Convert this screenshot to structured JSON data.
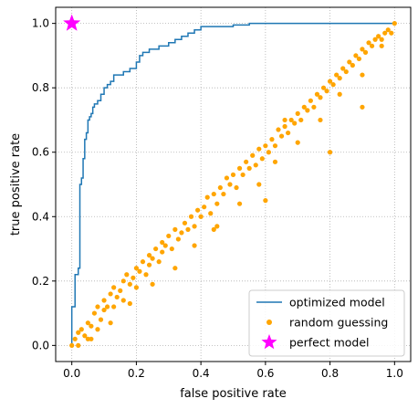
{
  "chart_data": {
    "type": "scatter",
    "xlabel": "false positive rate",
    "ylabel": "true positive rate",
    "xlim": [
      -0.05,
      1.05
    ],
    "ylim": [
      -0.05,
      1.05
    ],
    "xticks": [
      0.0,
      0.2,
      0.4,
      0.6,
      0.8,
      1.0
    ],
    "yticks": [
      0.0,
      0.2,
      0.4,
      0.6,
      0.8,
      1.0
    ],
    "xtick_labels": [
      "0.0",
      "0.2",
      "0.4",
      "0.6",
      "0.8",
      "1.0"
    ],
    "ytick_labels": [
      "0.0",
      "0.2",
      "0.4",
      "0.6",
      "0.8",
      "1.0"
    ],
    "grid": true,
    "legend_position": "lower-right",
    "series": [
      {
        "name": "optimized model",
        "kind": "line",
        "color": "#1f77b4",
        "x": [
          0.0,
          0.0,
          0.01,
          0.01,
          0.02,
          0.02,
          0.025,
          0.025,
          0.03,
          0.03,
          0.035,
          0.035,
          0.04,
          0.04,
          0.045,
          0.045,
          0.05,
          0.05,
          0.055,
          0.055,
          0.06,
          0.06,
          0.065,
          0.065,
          0.07,
          0.07,
          0.08,
          0.08,
          0.09,
          0.09,
          0.1,
          0.1,
          0.11,
          0.11,
          0.12,
          0.12,
          0.13,
          0.13,
          0.16,
          0.16,
          0.18,
          0.18,
          0.2,
          0.2,
          0.21,
          0.21,
          0.22,
          0.22,
          0.24,
          0.24,
          0.27,
          0.27,
          0.3,
          0.3,
          0.32,
          0.32,
          0.34,
          0.34,
          0.36,
          0.36,
          0.38,
          0.38,
          0.4,
          0.4,
          0.44,
          0.44,
          0.5,
          0.5,
          0.55,
          0.55,
          0.6,
          0.6,
          0.75,
          0.75,
          0.86,
          0.86,
          0.88,
          0.88,
          0.9,
          0.9,
          1.0
        ],
        "y": [
          0.0,
          0.12,
          0.12,
          0.22,
          0.22,
          0.24,
          0.24,
          0.5,
          0.5,
          0.52,
          0.52,
          0.58,
          0.58,
          0.64,
          0.64,
          0.66,
          0.66,
          0.7,
          0.7,
          0.71,
          0.71,
          0.72,
          0.72,
          0.74,
          0.74,
          0.75,
          0.75,
          0.76,
          0.76,
          0.78,
          0.78,
          0.8,
          0.8,
          0.81,
          0.81,
          0.82,
          0.82,
          0.84,
          0.84,
          0.85,
          0.85,
          0.86,
          0.86,
          0.88,
          0.88,
          0.9,
          0.9,
          0.91,
          0.91,
          0.92,
          0.92,
          0.93,
          0.93,
          0.94,
          0.94,
          0.95,
          0.95,
          0.96,
          0.96,
          0.97,
          0.97,
          0.98,
          0.98,
          0.99,
          0.99,
          0.99,
          0.99,
          0.995,
          0.995,
          1.0,
          1.0,
          1.0,
          1.0,
          1.0,
          1.0,
          1.0,
          1.0,
          1.0,
          1.0,
          1.0,
          1.0
        ]
      },
      {
        "name": "random guessing",
        "kind": "scatter",
        "color": "#ffa500",
        "x": [
          0.0,
          0.01,
          0.02,
          0.02,
          0.03,
          0.04,
          0.05,
          0.05,
          0.06,
          0.07,
          0.08,
          0.08,
          0.09,
          0.1,
          0.1,
          0.11,
          0.12,
          0.13,
          0.13,
          0.14,
          0.15,
          0.16,
          0.16,
          0.17,
          0.18,
          0.19,
          0.2,
          0.2,
          0.21,
          0.22,
          0.23,
          0.24,
          0.24,
          0.25,
          0.26,
          0.27,
          0.28,
          0.28,
          0.29,
          0.3,
          0.31,
          0.32,
          0.33,
          0.34,
          0.35,
          0.36,
          0.37,
          0.38,
          0.39,
          0.4,
          0.41,
          0.42,
          0.43,
          0.44,
          0.45,
          0.46,
          0.47,
          0.48,
          0.49,
          0.5,
          0.51,
          0.52,
          0.53,
          0.54,
          0.55,
          0.56,
          0.57,
          0.58,
          0.59,
          0.6,
          0.61,
          0.62,
          0.63,
          0.64,
          0.65,
          0.66,
          0.67,
          0.68,
          0.69,
          0.7,
          0.71,
          0.72,
          0.73,
          0.74,
          0.75,
          0.76,
          0.77,
          0.78,
          0.79,
          0.8,
          0.81,
          0.82,
          0.83,
          0.84,
          0.85,
          0.86,
          0.87,
          0.88,
          0.89,
          0.9,
          0.91,
          0.92,
          0.93,
          0.94,
          0.95,
          0.96,
          0.97,
          0.98,
          0.99,
          1.0,
          0.06,
          0.12,
          0.18,
          0.25,
          0.32,
          0.38,
          0.45,
          0.52,
          0.58,
          0.63,
          0.7,
          0.77,
          0.83,
          0.9,
          0.96,
          0.44,
          0.6,
          0.8,
          0.9,
          0.66
        ],
        "y": [
          0.0,
          0.02,
          0.0,
          0.04,
          0.05,
          0.03,
          0.07,
          0.02,
          0.06,
          0.1,
          0.05,
          0.12,
          0.08,
          0.11,
          0.14,
          0.12,
          0.16,
          0.12,
          0.18,
          0.15,
          0.17,
          0.2,
          0.14,
          0.22,
          0.19,
          0.21,
          0.24,
          0.18,
          0.23,
          0.26,
          0.22,
          0.28,
          0.25,
          0.27,
          0.3,
          0.26,
          0.32,
          0.29,
          0.31,
          0.34,
          0.3,
          0.36,
          0.33,
          0.35,
          0.38,
          0.36,
          0.4,
          0.37,
          0.42,
          0.4,
          0.43,
          0.46,
          0.41,
          0.47,
          0.44,
          0.49,
          0.47,
          0.52,
          0.5,
          0.53,
          0.49,
          0.55,
          0.53,
          0.57,
          0.55,
          0.59,
          0.56,
          0.61,
          0.58,
          0.62,
          0.6,
          0.64,
          0.62,
          0.67,
          0.65,
          0.68,
          0.66,
          0.7,
          0.69,
          0.72,
          0.7,
          0.74,
          0.73,
          0.76,
          0.74,
          0.78,
          0.77,
          0.8,
          0.79,
          0.82,
          0.81,
          0.84,
          0.83,
          0.86,
          0.85,
          0.88,
          0.87,
          0.9,
          0.89,
          0.92,
          0.91,
          0.94,
          0.93,
          0.95,
          0.96,
          0.95,
          0.97,
          0.98,
          0.97,
          1.0,
          0.02,
          0.07,
          0.13,
          0.19,
          0.24,
          0.31,
          0.37,
          0.44,
          0.5,
          0.57,
          0.63,
          0.7,
          0.78,
          0.84,
          0.93,
          0.36,
          0.45,
          0.6,
          0.74,
          0.7
        ]
      },
      {
        "name": "perfect model",
        "kind": "marker",
        "marker": "star",
        "color": "#ff00ff",
        "x": [
          0.0
        ],
        "y": [
          1.0
        ]
      }
    ]
  }
}
